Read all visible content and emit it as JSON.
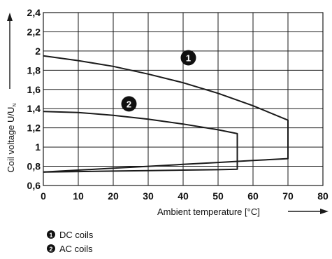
{
  "chart_data": {
    "type": "line",
    "xlabel": "Ambient temperature [°C]",
    "ylabel": "Coil voltage U/U",
    "ylabel_subscript": "N",
    "xlim": [
      0,
      80
    ],
    "ylim": [
      0.6,
      2.4
    ],
    "x_ticks": [
      "0",
      "10",
      "20",
      "30",
      "40",
      "50",
      "60",
      "70",
      "80"
    ],
    "y_ticks": [
      "0,6",
      "0,8",
      "1",
      "1,2",
      "1,4",
      "1,6",
      "1,8",
      "2",
      "2,2",
      "2,4"
    ],
    "grid": true,
    "series": [
      {
        "marker": "1",
        "name": "DC coils",
        "upper": {
          "x": [
            0,
            10,
            20,
            30,
            40,
            50,
            60,
            70
          ],
          "y": [
            1.95,
            1.9,
            1.84,
            1.76,
            1.67,
            1.56,
            1.43,
            1.28
          ]
        },
        "lower": {
          "x": [
            0,
            10,
            20,
            30,
            40,
            50,
            60,
            70
          ],
          "y": [
            0.74,
            0.76,
            0.78,
            0.8,
            0.82,
            0.84,
            0.86,
            0.88
          ]
        }
      },
      {
        "marker": "2",
        "name": "AC coils",
        "upper": {
          "x": [
            0,
            10,
            20,
            30,
            40,
            50,
            55.5
          ],
          "y": [
            1.37,
            1.36,
            1.33,
            1.29,
            1.24,
            1.18,
            1.14
          ]
        },
        "lower": {
          "x": [
            0,
            10,
            20,
            30,
            40,
            50,
            55.5
          ],
          "y": [
            0.74,
            0.745,
            0.75,
            0.755,
            0.76,
            0.765,
            0.77
          ]
        }
      }
    ],
    "curve_markers": [
      {
        "label": "1",
        "x": 41.5,
        "y": 1.93
      },
      {
        "label": "2",
        "x": 24.5,
        "y": 1.45
      }
    ],
    "legend": [
      {
        "marker": "1",
        "label": "DC coils"
      },
      {
        "marker": "2",
        "label": "AC coils"
      }
    ],
    "colors": {
      "line": "#1a1a1a",
      "grid": "#1a1a1a",
      "marker_fill": "#111111"
    }
  }
}
